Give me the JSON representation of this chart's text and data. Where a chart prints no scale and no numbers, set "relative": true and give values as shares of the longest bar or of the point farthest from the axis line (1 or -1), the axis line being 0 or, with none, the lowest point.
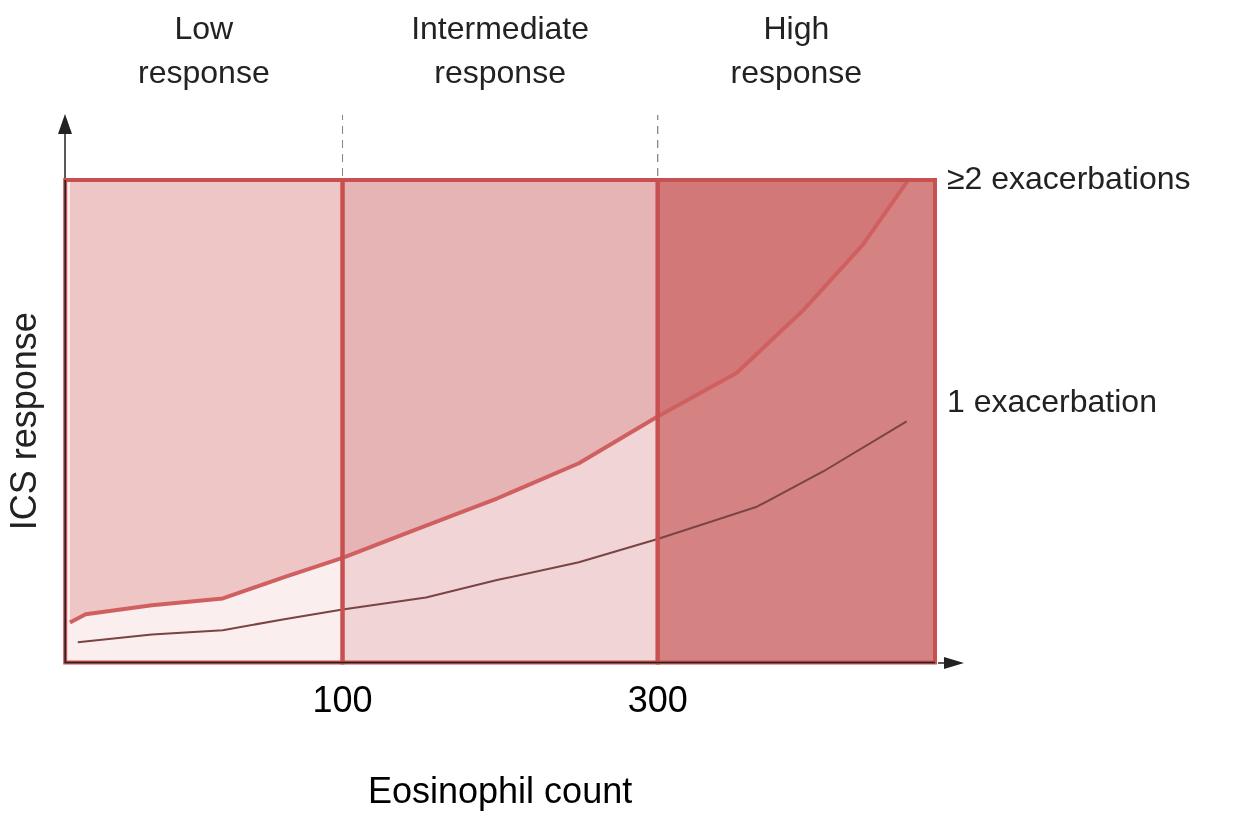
{
  "chart_data": {
    "type": "line",
    "relative": true,
    "xlabel": "Eosinophil count",
    "ylabel": "ICS response",
    "xlim": [
      -76,
      476
    ],
    "xticks": [
      100,
      300
    ],
    "grid": false,
    "legend": false,
    "marker": "none",
    "bands": [
      {
        "axis": "x",
        "from": -76,
        "to": 100,
        "label": "Low response",
        "color": "#fbeeee"
      },
      {
        "axis": "x",
        "from": 100,
        "to": 300,
        "label": "Intermediate response",
        "color": "#f0d4d6"
      },
      {
        "axis": "x",
        "from": 300,
        "to": 476,
        "label": "High response",
        "color": "#d48282"
      }
    ],
    "series": [
      {
        "name": "≥2 exacerbations",
        "color": "#d06060",
        "x": [
          -73,
          -63,
          -21,
          24,
          63,
          100,
          146,
          198,
          250,
          300,
          350,
          392,
          430,
          459
        ],
        "values": [
          0.083,
          0.1,
          0.119,
          0.133,
          0.177,
          0.217,
          0.275,
          0.34,
          0.413,
          0.51,
          0.6,
          0.729,
          0.865,
          1
        ]
      },
      {
        "name": "1 exacerbation",
        "color": "#7a4444",
        "x": [
          -68,
          -21,
          24,
          63,
          100,
          153,
          198,
          250,
          300,
          363,
          405,
          458
        ],
        "values": [
          0.042,
          0.058,
          0.067,
          0.09,
          0.11,
          0.135,
          0.171,
          0.208,
          0.256,
          0.323,
          0.396,
          0.5
        ]
      }
    ]
  }
}
